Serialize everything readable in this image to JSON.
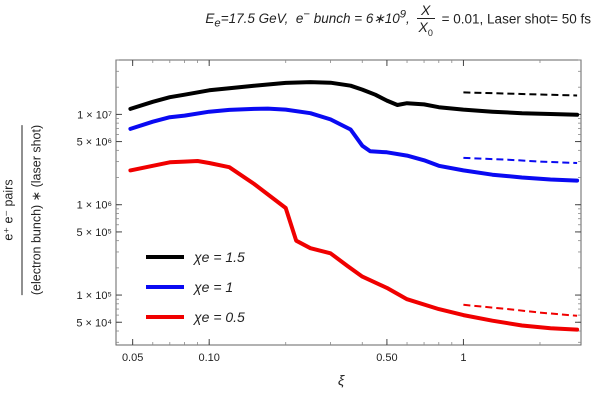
{
  "title": {
    "prefix_html": "E<sub>e</sub>=17.5 GeV,&nbsp; e<sup>−</sup> bunch = 6∗10<sup>9</sup>,",
    "frac_num": "X",
    "frac_den": "X",
    "frac_den_sub": "0",
    "suffix": "= 0.01,  Laser shot= 50 fs"
  },
  "ylabel": {
    "top": "e⁺ e⁻ pairs",
    "bottom": "(electron bunch) ∗ (laser shot)"
  },
  "xlabel": "ξ",
  "chart_data": {
    "type": "line",
    "x_scale": "log",
    "y_scale": "log",
    "xlim": [
      0.043,
      2.9
    ],
    "ylim": [
      28000,
      40000000
    ],
    "grid": false,
    "legend_position": "bottom-left",
    "xticks": [
      {
        "value": 0.05,
        "label": "0.05"
      },
      {
        "value": 0.1,
        "label": "0.10"
      },
      {
        "value": 0.5,
        "label": "0.50"
      },
      {
        "value": 1,
        "label": "1"
      }
    ],
    "yticks": [
      {
        "value": 10000000,
        "label": "1 × 10⁷"
      },
      {
        "value": 5000000,
        "label": "5 × 10⁶"
      },
      {
        "value": 1000000,
        "label": "1 × 10⁶"
      },
      {
        "value": 500000,
        "label": "5 × 10⁵"
      },
      {
        "value": 100000,
        "label": "1 × 10⁵"
      },
      {
        "value": 50000,
        "label": "5 × 10⁴"
      }
    ],
    "series": [
      {
        "name": "χe = 1.5",
        "color": "#000000",
        "x": [
          0.049,
          0.06,
          0.07,
          0.08,
          0.1,
          0.12,
          0.15,
          0.2,
          0.25,
          0.3,
          0.36,
          0.4,
          0.45,
          0.5,
          0.55,
          0.6,
          0.7,
          0.8,
          1.0,
          1.3,
          1.7,
          2.2,
          2.8
        ],
        "y": [
          11500000,
          13800000,
          15500000,
          16500000,
          18500000,
          19500000,
          20700000,
          22300000,
          22800000,
          22400000,
          20800000,
          18800000,
          16500000,
          14200000,
          12700000,
          13300000,
          12900000,
          12000000,
          11300000,
          10700000,
          10300000,
          10100000,
          9900000
        ]
      },
      {
        "name": "χe = 1",
        "color": "#0a0af2",
        "x": [
          0.049,
          0.06,
          0.07,
          0.08,
          0.1,
          0.12,
          0.15,
          0.17,
          0.2,
          0.25,
          0.3,
          0.36,
          0.4,
          0.43,
          0.5,
          0.6,
          0.7,
          0.8,
          1.0,
          1.3,
          1.7,
          2.2,
          2.8
        ],
        "y": [
          6900000,
          8300000,
          9300000,
          9700000,
          10700000,
          11200000,
          11500000,
          11600000,
          11300000,
          10300000,
          8800000,
          6800000,
          4500000,
          3900000,
          3800000,
          3500000,
          3100000,
          2700000,
          2400000,
          2150000,
          2000000,
          1900000,
          1850000
        ]
      },
      {
        "name": "χe = 0.5",
        "color": "#f00000",
        "x": [
          0.049,
          0.06,
          0.07,
          0.08,
          0.09,
          0.1,
          0.12,
          0.15,
          0.2,
          0.22,
          0.25,
          0.3,
          0.35,
          0.4,
          0.5,
          0.6,
          0.8,
          1.0,
          1.3,
          1.7,
          2.2,
          2.8
        ],
        "y": [
          2400000,
          2700000,
          2950000,
          3000000,
          3050000,
          2900000,
          2600000,
          1700000,
          920000,
          400000,
          330000,
          290000,
          210000,
          160000,
          120000,
          90000,
          70000,
          60000,
          52000,
          46000,
          43000,
          41500
        ]
      }
    ],
    "dashed_series": [
      {
        "color": "#000000",
        "x": [
          1.0,
          1.5,
          2.0,
          2.8
        ],
        "y": [
          17500000,
          17000000,
          16600000,
          16200000
        ]
      },
      {
        "color": "#0a0af2",
        "x": [
          1.0,
          1.5,
          2.0,
          2.8
        ],
        "y": [
          3300000,
          3150000,
          3000000,
          2900000
        ]
      },
      {
        "color": "#f00000",
        "x": [
          1.0,
          1.5,
          2.0,
          2.8
        ],
        "y": [
          78000,
          70000,
          64000,
          59000
        ]
      }
    ]
  }
}
